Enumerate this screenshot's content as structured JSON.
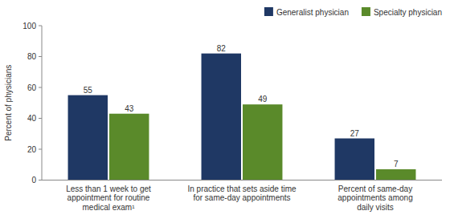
{
  "chart_data": {
    "type": "bar",
    "categories": [
      "Less than 1 week to get\nappointment for routine\nmedical exam¹",
      "In practice that sets aside time\nfor same-day appointments",
      "Percent of same-day\nappointments among\ndaily visits"
    ],
    "series": [
      {
        "name": "Generalist physician",
        "color": "#1f3864",
        "values": [
          55,
          82,
          27
        ]
      },
      {
        "name": "Specialty physician",
        "color": "#5a8a2a",
        "values": [
          43,
          49,
          7
        ]
      }
    ],
    "ylabel": "Percent of physicians",
    "ylim": [
      0,
      100
    ],
    "yticks": [
      0,
      20,
      40,
      60,
      80,
      100
    ],
    "data_labels": true,
    "legend": "upper-right",
    "grid": false
  }
}
